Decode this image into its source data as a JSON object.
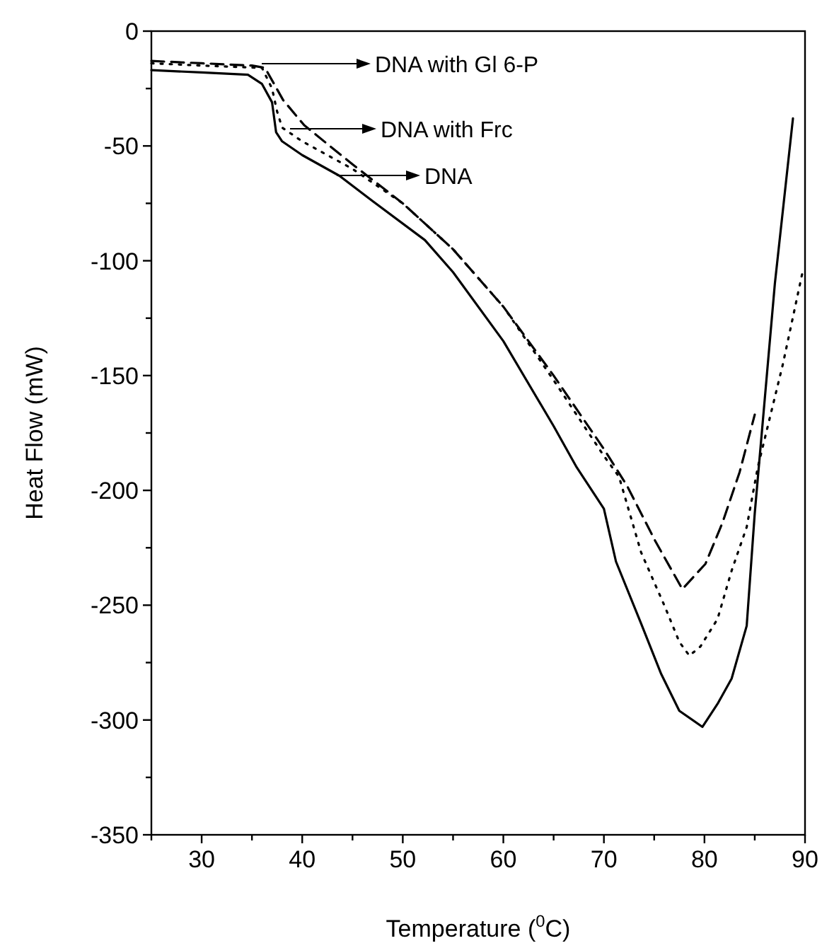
{
  "chart_data": {
    "type": "line",
    "xlabel": "Temperature ($^{0}$C)",
    "ylabel": "Heat Flow (mW)",
    "xlim": [
      25,
      90
    ],
    "ylim": [
      -350,
      0
    ],
    "xticks": [
      {
        "value": 25,
        "label": null
      },
      30,
      {
        "value": 35,
        "label": null
      },
      40,
      {
        "value": 45,
        "label": null
      },
      50,
      {
        "value": 55,
        "label": null
      },
      60,
      {
        "value": 65,
        "label": null
      },
      70,
      {
        "value": 75,
        "label": null
      },
      80,
      {
        "value": 85,
        "label": null
      },
      90
    ],
    "yticks": [
      {
        "value": -350,
        "label": "-350"
      },
      {
        "value": -325,
        "label": null
      },
      {
        "value": -300,
        "label": "-300"
      },
      {
        "value": -275,
        "label": null
      },
      {
        "value": -250,
        "label": "-250"
      },
      {
        "value": -225,
        "label": null
      },
      {
        "value": -200,
        "label": "-200"
      },
      {
        "value": -175,
        "label": null
      },
      {
        "value": -150,
        "label": "-150"
      },
      {
        "value": -125,
        "label": null
      },
      {
        "value": -100,
        "label": "-100"
      },
      {
        "value": -75,
        "label": null
      },
      {
        "value": -50,
        "label": "-50"
      },
      {
        "value": -25,
        "label": null
      },
      0
    ],
    "grid": false,
    "series": [
      {
        "color": "#000000",
        "line_style": "solid",
        "x": [
          25,
          30,
          34.6,
          36,
          37,
          37.4,
          38,
          40,
          43.7,
          47,
          52.2,
          55,
          60,
          65,
          67.3,
          70,
          71.2,
          73.7,
          75.7,
          77.5,
          79.8,
          81.3,
          82.7,
          84.2,
          85,
          86,
          87,
          88.8
        ],
        "values": [
          -17,
          -18,
          -19,
          -23,
          -31,
          -44,
          -48,
          -54,
          -63,
          -74,
          -91,
          -105,
          -135,
          -172,
          -190,
          -208,
          -231,
          -258,
          -280,
          -296,
          -303,
          -293,
          -282,
          -259,
          -210,
          -160,
          -110,
          -38
        ]
      },
      {
        "color": "#000000",
        "line_style": "dashed",
        "x": [
          25,
          30,
          35,
          36.3,
          38.1,
          40.2,
          45,
          50,
          55,
          60,
          65,
          70,
          72.3,
          75.1,
          77.8,
          80.1,
          81.8,
          83.5,
          85
        ],
        "values": [
          -13,
          -14,
          -15,
          -16,
          -30,
          -41,
          -58,
          -75,
          -95,
          -120,
          -150,
          -182,
          -198,
          -222,
          -243,
          -232,
          -214,
          -192,
          -167
        ]
      },
      {
        "color": "#000000",
        "line_style": "dotted",
        "x": [
          25,
          30,
          36,
          37,
          37.5,
          38,
          40,
          45,
          50,
          55,
          60,
          65,
          70,
          71.5,
          73.7,
          76.1,
          77.5,
          78.5,
          79.6,
          81.3,
          82.7,
          84.2,
          85.3,
          87.8,
          89.8
        ],
        "values": [
          -14,
          -15,
          -16,
          -25,
          -35,
          -42,
          -48,
          -60,
          -75,
          -95,
          -120,
          -152,
          -185,
          -194,
          -227,
          -251,
          -266,
          -272,
          -268,
          -256,
          -235,
          -216,
          -190,
          -145,
          -104
        ]
      }
    ],
    "annotations": [
      "DNA with Gl 6-P",
      "DNA with Frc",
      "DNA"
    ]
  }
}
